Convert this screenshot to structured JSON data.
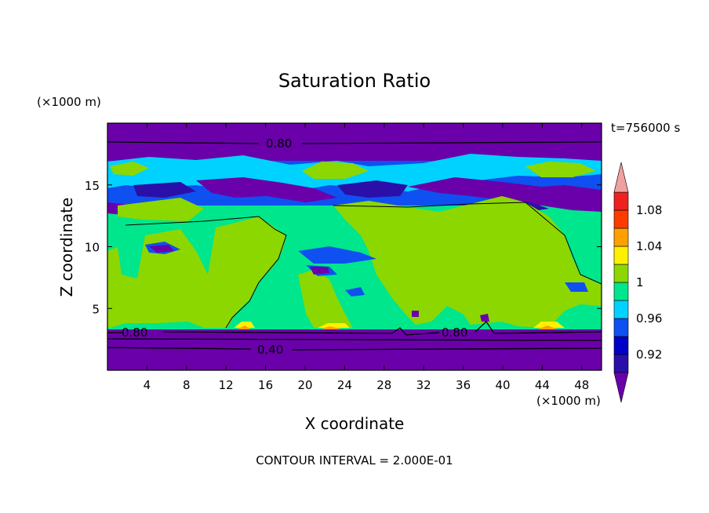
{
  "chart_data": {
    "type": "heatmap",
    "title": "Saturation Ratio",
    "xlabel": "X coordinate",
    "ylabel": "Z coordinate",
    "x_unit": "(×1000 m)",
    "y_unit": "(×1000 m)",
    "time_label": "t=756000 s",
    "footer": "CONTOUR INTERVAL = 2.000E-01",
    "xlim": [
      0,
      50
    ],
    "ylim": [
      0,
      20
    ],
    "x_ticks": [
      4,
      8,
      12,
      16,
      20,
      24,
      28,
      32,
      36,
      40,
      44,
      48
    ],
    "y_ticks": [
      5,
      10,
      15
    ],
    "colorbar": {
      "levels": [
        0.9,
        0.92,
        0.94,
        0.96,
        0.98,
        1.0,
        1.02,
        1.04,
        1.06,
        1.08,
        1.1
      ],
      "colors": [
        "#6a00aa",
        "#2a10a8",
        "#0000c8",
        "#0f50f0",
        "#00d2ff",
        "#00e68c",
        "#8cd700",
        "#fff000",
        "#ffa000",
        "#ff3c00",
        "#ee2020",
        "#f0a0a0"
      ],
      "tick_labels": [
        "0.92",
        "0.96",
        "1",
        "1.04",
        "1.08"
      ],
      "extend": "both"
    },
    "contour_labels": [
      "0.80",
      "0.80",
      "0.80",
      "0.40"
    ],
    "regions": [
      {
        "level": "below 0.90",
        "z_range": [
          0,
          3.2
        ]
      },
      {
        "level": "0.98-1.00",
        "z_range": [
          3.2,
          13
        ]
      },
      {
        "level": "1.00-1.02",
        "z_range": [
          3.2,
          13
        ]
      },
      {
        "level": "mixed 0.90-1.00",
        "z_range": [
          13,
          17.5
        ]
      },
      {
        "level": "below 0.90",
        "z_range": [
          17.5,
          20
        ]
      }
    ]
  }
}
